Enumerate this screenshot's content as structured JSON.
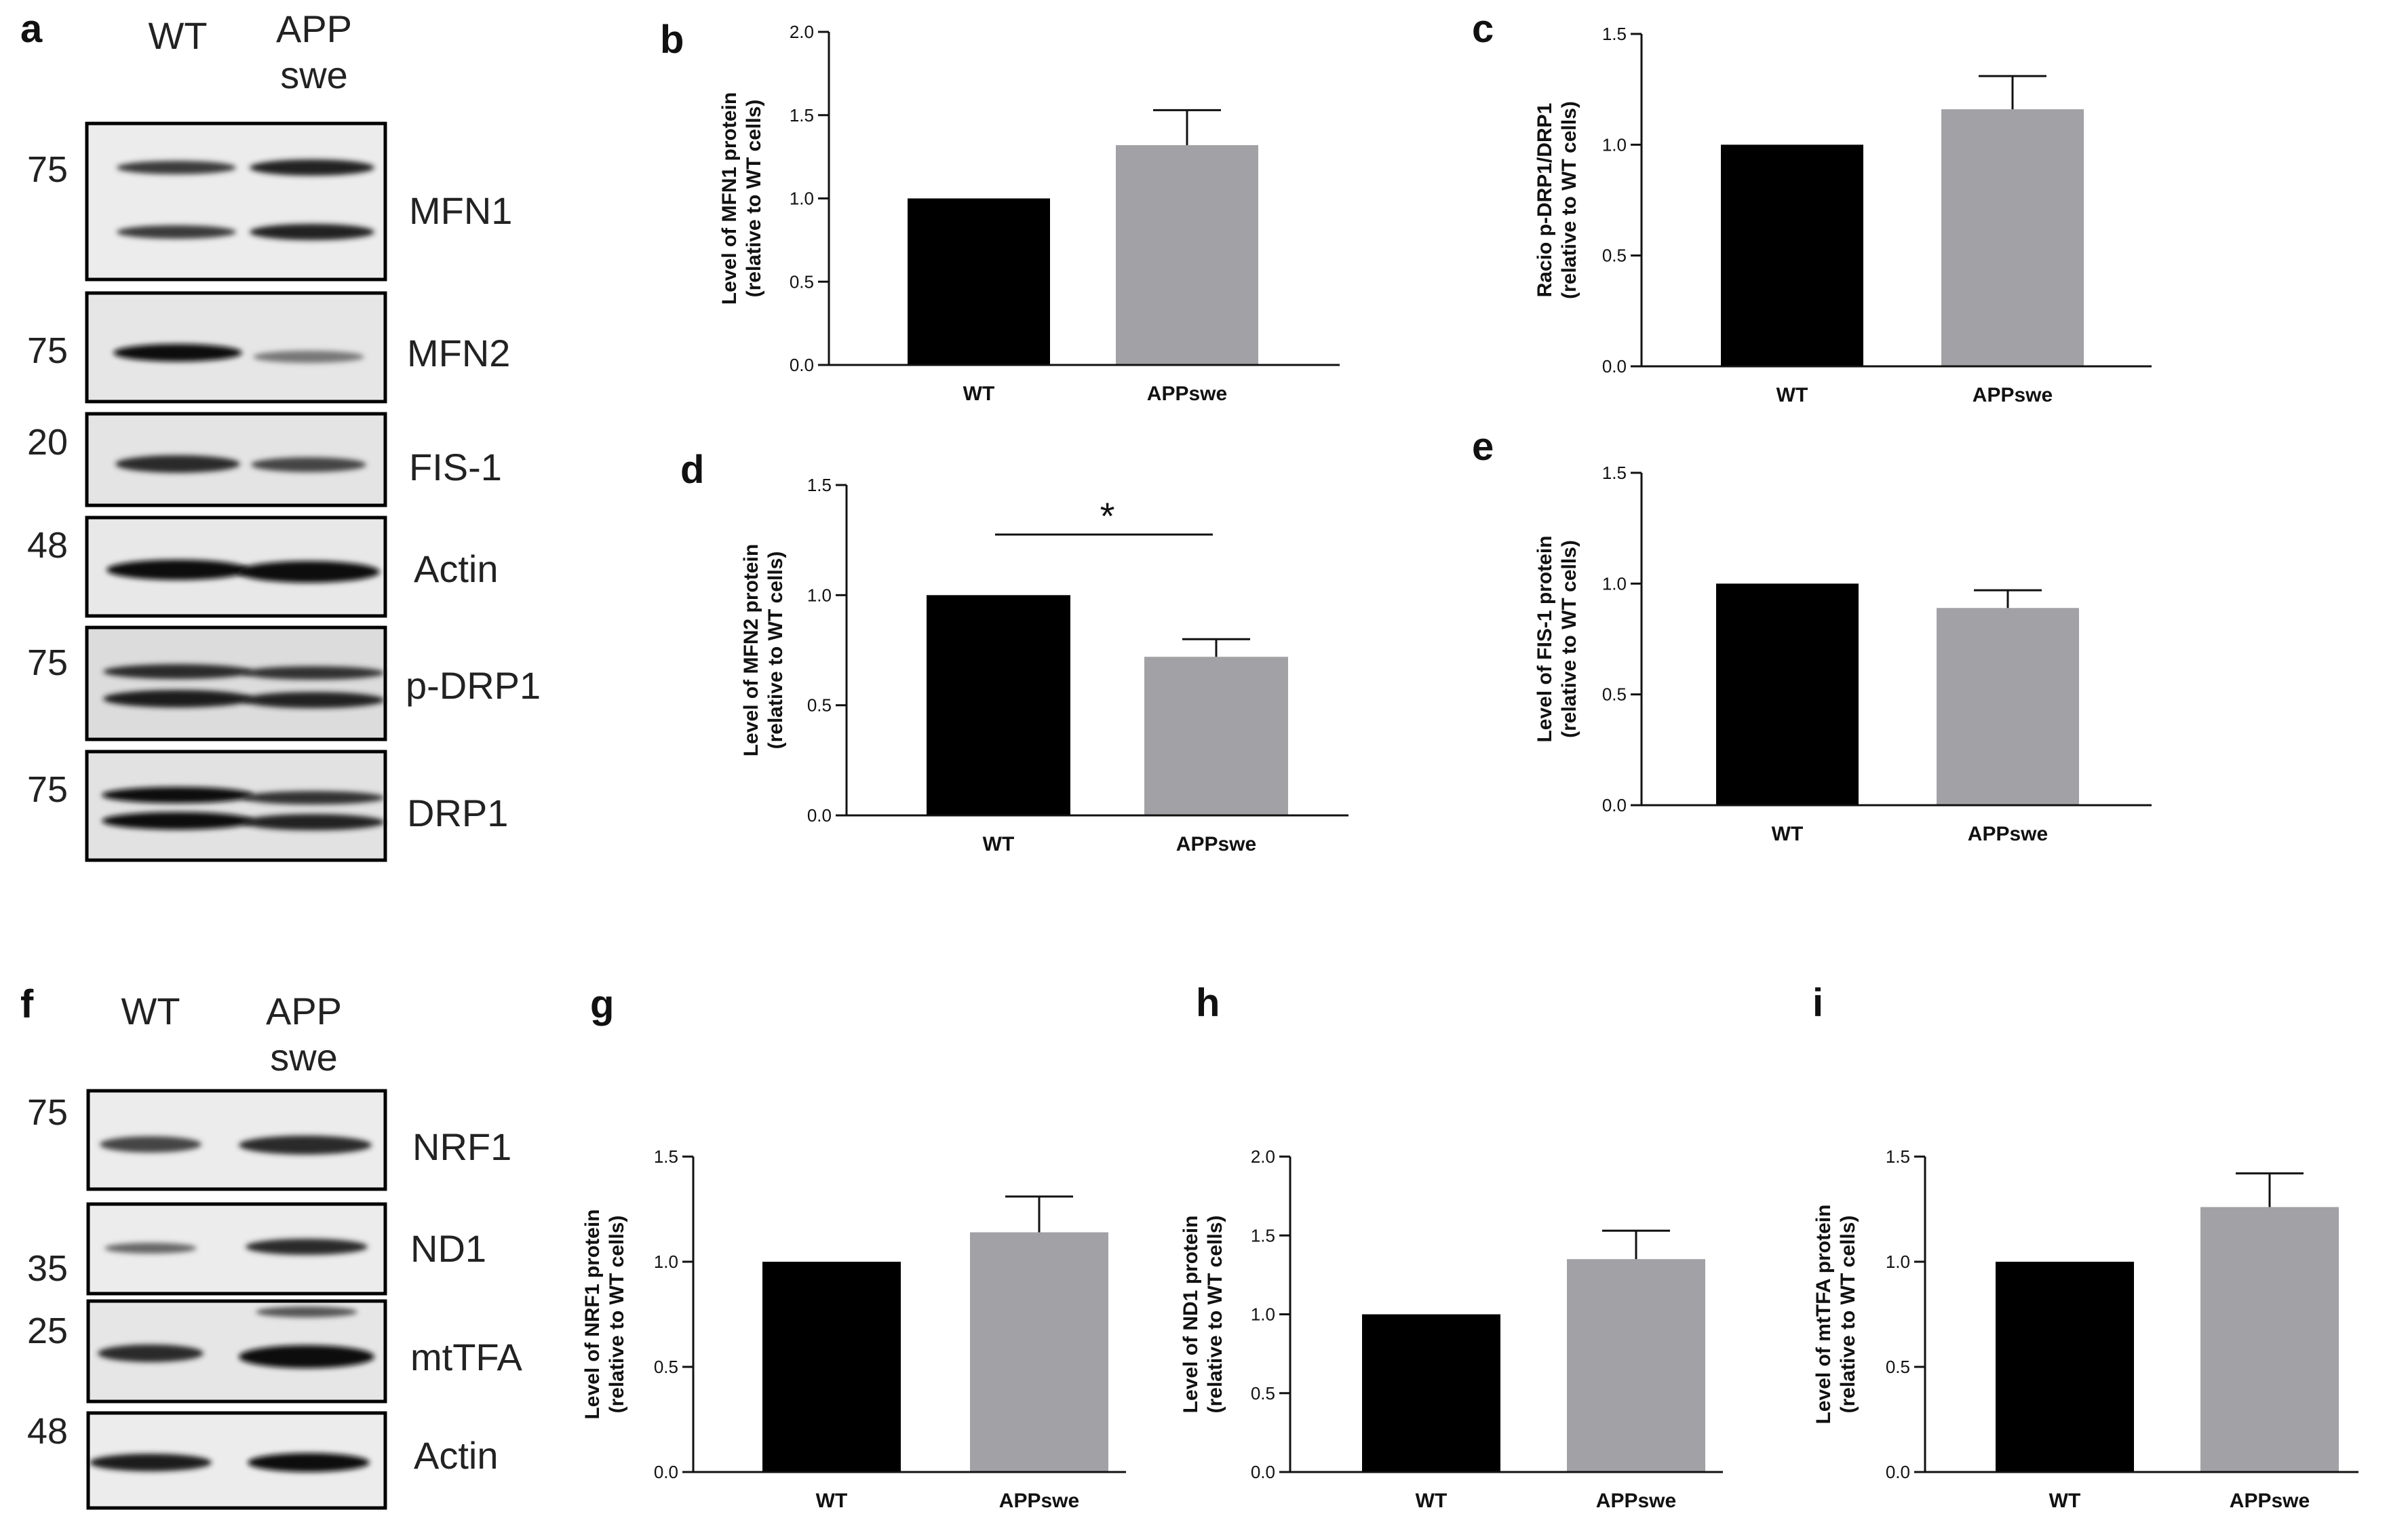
{
  "colors": {
    "wt": "#000000",
    "app": "#a2a2a6",
    "axis": "#111111",
    "blot_bg": "#e9e9e9",
    "band": "#1d1d1d"
  },
  "blots": [
    {
      "letter": "a",
      "lanes": [
        "WT",
        "APP",
        "swe"
      ],
      "rows": [
        {
          "mw": "75",
          "label": "MFN1",
          "band_color": "wt-app"
        },
        {
          "mw": "75",
          "label": "MFN2"
        },
        {
          "mw": "20",
          "label": "FIS-1"
        },
        {
          "mw": "48",
          "label": "Actin"
        },
        {
          "mw": "75",
          "label": "p-DRP1"
        },
        {
          "mw": "75",
          "label": "DRP1"
        }
      ]
    },
    {
      "letter": "f",
      "lanes": [
        "WT",
        "APP",
        "swe"
      ],
      "rows": [
        {
          "mw": "75",
          "label": "NRF1"
        },
        {
          "mw": "35",
          "label": "ND1"
        },
        {
          "mw": "25",
          "label": "mtTFA"
        },
        {
          "mw": "48",
          "label": "Actin"
        }
      ]
    }
  ],
  "chart_data": [
    {
      "id": "b",
      "letter": "b",
      "type": "bar",
      "categories": [
        "WT",
        "APPswe"
      ],
      "values": [
        1.0,
        1.32
      ],
      "errors": [
        0,
        0.21
      ],
      "ylabel_lines": [
        "Level of MFN1 protein",
        "(relative to WT cells)"
      ],
      "ylim": [
        0,
        2.0
      ],
      "ticks": [
        0,
        0.5,
        1.0,
        1.5,
        2.0
      ],
      "tick_labels": [
        "0.0",
        "0.5",
        "1.0",
        "1.5",
        "2.0"
      ],
      "significance": null
    },
    {
      "id": "c",
      "letter": "c",
      "type": "bar",
      "categories": [
        "WT",
        "APPswe"
      ],
      "values": [
        1.0,
        1.16
      ],
      "errors": [
        0,
        0.15
      ],
      "ylabel_lines": [
        "Racio p-DRP1/DRP1",
        "(relative to WT cells)"
      ],
      "ylim": [
        0,
        1.5
      ],
      "ticks": [
        0,
        0.5,
        1.0,
        1.5
      ],
      "tick_labels": [
        "0.0",
        "0.5",
        "1.0",
        "1.5"
      ],
      "significance": null
    },
    {
      "id": "d",
      "letter": "d",
      "type": "bar",
      "categories": [
        "WT",
        "APPswe"
      ],
      "values": [
        1.0,
        0.72
      ],
      "errors": [
        0,
        0.08
      ],
      "ylabel_lines": [
        "Level of MFN2 protein",
        "(relative to WT cells)"
      ],
      "ylim": [
        0,
        1.5
      ],
      "ticks": [
        0,
        0.5,
        1.0,
        1.5
      ],
      "tick_labels": [
        "0.0",
        "0.5",
        "1.0",
        "1.5"
      ],
      "significance": "*"
    },
    {
      "id": "e",
      "letter": "e",
      "type": "bar",
      "categories": [
        "WT",
        "APPswe"
      ],
      "values": [
        1.0,
        0.89
      ],
      "errors": [
        0,
        0.08
      ],
      "ylabel_lines": [
        "Level of FIS-1 protein",
        "(relative to WT cells)"
      ],
      "ylim": [
        0,
        1.5
      ],
      "ticks": [
        0,
        0.5,
        1.0,
        1.5
      ],
      "tick_labels": [
        "0.0",
        "0.5",
        "1.0",
        "1.5"
      ],
      "significance": null
    },
    {
      "id": "g",
      "letter": "g",
      "type": "bar",
      "categories": [
        "WT",
        "APPswe"
      ],
      "values": [
        1.0,
        1.14
      ],
      "errors": [
        0,
        0.17
      ],
      "ylabel_lines": [
        "Level of NRF1 protein",
        "(relative to WT cells)"
      ],
      "ylim": [
        0,
        1.5
      ],
      "ticks": [
        0,
        0.5,
        1.0,
        1.5
      ],
      "tick_labels": [
        "0.0",
        "0.5",
        "1.0",
        "1.5"
      ],
      "significance": null
    },
    {
      "id": "h",
      "letter": "h",
      "type": "bar",
      "categories": [
        "WT",
        "APPswe"
      ],
      "values": [
        1.0,
        1.35
      ],
      "errors": [
        0,
        0.18
      ],
      "ylabel_lines": [
        "Level of ND1 protein",
        "(relative to WT cells)"
      ],
      "ylim": [
        0,
        2.0
      ],
      "ticks": [
        0,
        0.5,
        1.0,
        1.5,
        2.0
      ],
      "tick_labels": [
        "0.0",
        "0.5",
        "1.0",
        "1.5",
        "2.0"
      ],
      "significance": null
    },
    {
      "id": "i",
      "letter": "i",
      "type": "bar",
      "categories": [
        "WT",
        "APPswe"
      ],
      "values": [
        1.0,
        1.26
      ],
      "errors": [
        0,
        0.16
      ],
      "ylabel_lines": [
        "Level of mtTFA protein",
        "(relative to WT cells)"
      ],
      "ylim": [
        0,
        1.5
      ],
      "ticks": [
        0,
        0.5,
        1.0,
        1.5
      ],
      "tick_labels": [
        "0.0",
        "0.5",
        "1.0",
        "1.5"
      ],
      "significance": null
    }
  ]
}
